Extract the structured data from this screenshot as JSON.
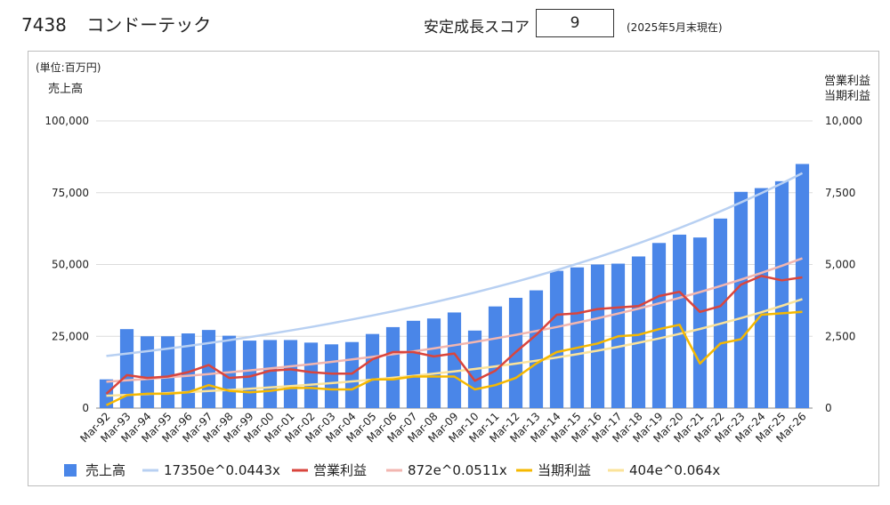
{
  "header": {
    "code": "7438",
    "company": "コンドーテック",
    "score_label": "安定成長スコア",
    "score_value": "9",
    "date_note": "(2025年5月末現在)"
  },
  "chart_data": {
    "type": "bar+line",
    "unit": "(単位:百万円)",
    "ylabel_left": "売上高",
    "ylabel_right": [
      "営業利益",
      "当期利益"
    ],
    "ylim_left": [
      0,
      100000
    ],
    "ylim_right": [
      0,
      10000
    ],
    "yticks_left": [
      "0",
      "25,000",
      "50,000",
      "75,000",
      "100,000"
    ],
    "yticks_right": [
      "0",
      "2,500",
      "5,000",
      "7,500",
      "10,000"
    ],
    "grid": true,
    "legend_position": "bottom",
    "categories": [
      "Mar-92",
      "Mar-93",
      "Mar-94",
      "Mar-95",
      "Mar-96",
      "Mar-97",
      "Mar-98",
      "Mar-99",
      "Mar-00",
      "Mar-01",
      "Mar-02",
      "Mar-03",
      "Mar-04",
      "Mar-05",
      "Mar-06",
      "Mar-07",
      "Mar-08",
      "Mar-09",
      "Mar-10",
      "Mar-11",
      "Mar-12",
      "Mar-13",
      "Mar-14",
      "Mar-15",
      "Mar-16",
      "Mar-17",
      "Mar-18",
      "Mar-19",
      "Mar-20",
      "Mar-21",
      "Mar-22",
      "Mar-23",
      "Mar-24",
      "Mar-25",
      "Mar-26"
    ],
    "series": [
      {
        "name": "売上高",
        "kind": "bar",
        "axis": "left",
        "color": "#4a86e8",
        "values": [
          10000,
          27500,
          25000,
          25000,
          26000,
          27200,
          25200,
          23500,
          23700,
          23700,
          22800,
          22200,
          23000,
          25800,
          28200,
          30400,
          31200,
          33300,
          27000,
          35400,
          38400,
          41000,
          47800,
          49000,
          50000,
          50300,
          52800,
          57500,
          60400,
          59400,
          66000,
          75300,
          76600,
          79000,
          85000
        ]
      },
      {
        "name": "17350e^0.0443x",
        "kind": "trend",
        "axis": "left",
        "color": "#b8d0f2",
        "a": 17350,
        "b": 0.0443
      },
      {
        "name": "営業利益",
        "kind": "line",
        "axis": "right",
        "color": "#d9453d",
        "values": [
          500,
          1150,
          1050,
          1100,
          1250,
          1500,
          1050,
          1100,
          1300,
          1350,
          1250,
          1200,
          1200,
          1700,
          1950,
          1950,
          1800,
          1900,
          950,
          1300,
          1950,
          2550,
          3250,
          3300,
          3450,
          3500,
          3550,
          3900,
          4050,
          3350,
          3550,
          4300,
          4600,
          4450,
          4550
        ]
      },
      {
        "name": "872e^0.0511x",
        "kind": "trend",
        "axis": "right",
        "color": "#f2b6b0",
        "a": 872,
        "b": 0.0511
      },
      {
        "name": "当期利益",
        "kind": "line",
        "axis": "right",
        "color": "#f5b800",
        "values": [
          100,
          450,
          500,
          500,
          550,
          800,
          600,
          550,
          600,
          700,
          700,
          650,
          650,
          1000,
          1000,
          1100,
          1100,
          1100,
          650,
          800,
          1050,
          1550,
          1950,
          2100,
          2250,
          2500,
          2550,
          2750,
          2900,
          1550,
          2250,
          2400,
          3250,
          3300,
          3350
        ]
      },
      {
        "name": "404e^0.064x",
        "kind": "trend",
        "axis": "right",
        "color": "#fbe39a",
        "a": 404,
        "b": 0.064
      }
    ]
  }
}
